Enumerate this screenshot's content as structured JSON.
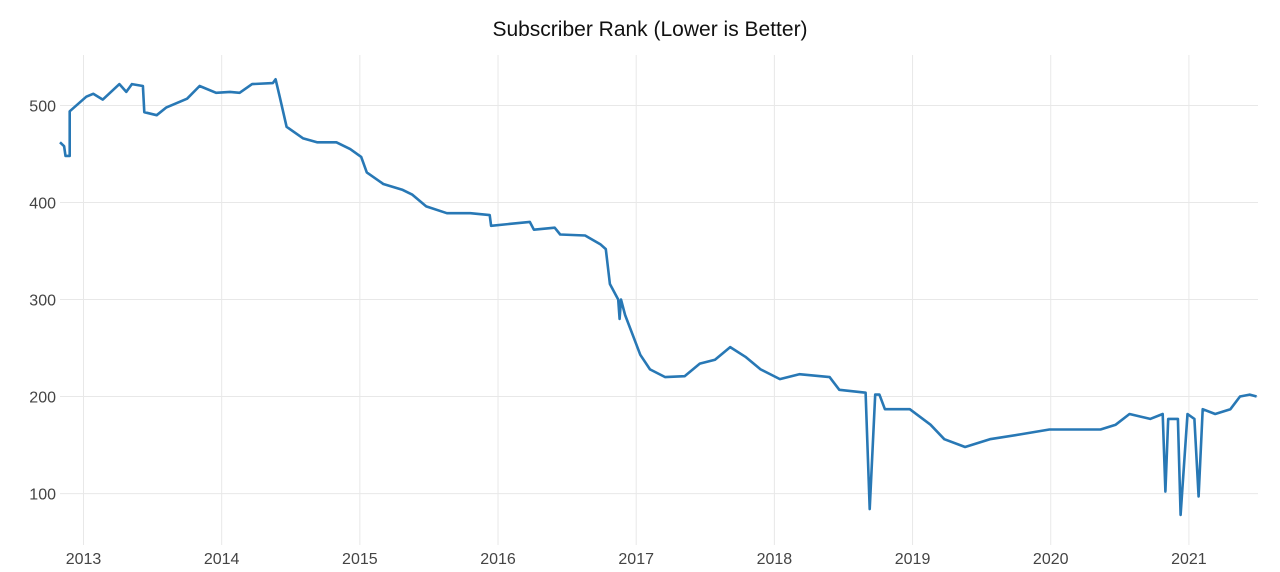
{
  "chart_data": {
    "type": "line",
    "title": "Subscriber Rank (Lower is Better)",
    "xlabel": "",
    "ylabel": "",
    "xlim": [
      2012.83,
      2021.5
    ],
    "ylim": [
      47,
      552
    ],
    "grid": true,
    "x_ticks": [
      2013,
      2014,
      2015,
      2016,
      2017,
      2018,
      2019,
      2020,
      2021
    ],
    "x_tick_labels": [
      "2013",
      "2014",
      "2015",
      "2016",
      "2017",
      "2018",
      "2019",
      "2020",
      "2021"
    ],
    "y_ticks": [
      100,
      200,
      300,
      400,
      500
    ],
    "y_tick_labels": [
      "100",
      "200",
      "300",
      "400",
      "500"
    ],
    "series": [
      {
        "name": "Subscriber Rank",
        "color": "#2878b5",
        "x": [
          2012.83,
          2012.86,
          2012.87,
          2012.9,
          2012.9,
          2013.02,
          2013.07,
          2013.14,
          2013.26,
          2013.31,
          2013.35,
          2013.43,
          2013.44,
          2013.53,
          2013.6,
          2013.75,
          2013.84,
          2013.96,
          2014.06,
          2014.13,
          2014.22,
          2014.37,
          2014.39,
          2014.42,
          2014.47,
          2014.59,
          2014.69,
          2014.83,
          2014.93,
          2015.01,
          2015.05,
          2015.17,
          2015.31,
          2015.38,
          2015.48,
          2015.63,
          2015.8,
          2015.94,
          2015.95,
          2016.23,
          2016.26,
          2016.41,
          2016.45,
          2016.63,
          2016.74,
          2016.78,
          2016.81,
          2016.87,
          2016.88,
          2016.89,
          2016.92,
          2017.03,
          2017.1,
          2017.21,
          2017.35,
          2017.46,
          2017.57,
          2017.68,
          2017.79,
          2017.9,
          2018.04,
          2018.18,
          2018.4,
          2018.47,
          2018.66,
          2018.69,
          2018.73,
          2018.76,
          2018.8,
          2018.98,
          2019.13,
          2019.23,
          2019.38,
          2019.56,
          2019.78,
          2019.99,
          2020.36,
          2020.47,
          2020.57,
          2020.72,
          2020.81,
          2020.83,
          2020.85,
          2020.92,
          2020.94,
          2020.99,
          2021.04,
          2021.07,
          2021.1,
          2021.19,
          2021.3,
          2021.37,
          2021.44,
          2021.49
        ],
        "y": [
          462,
          458,
          448,
          448,
          494,
          509,
          512,
          506,
          522,
          514,
          522,
          520,
          493,
          490,
          498,
          507,
          520,
          513,
          514,
          513,
          522,
          523,
          527,
          509,
          478,
          466,
          462,
          462,
          455,
          447,
          431,
          419,
          413,
          408,
          396,
          389,
          389,
          387,
          376,
          380,
          372,
          374,
          367,
          366,
          357,
          352,
          316,
          300,
          280,
          300,
          284,
          243,
          228,
          220,
          221,
          234,
          238,
          251,
          241,
          228,
          218,
          223,
          220,
          207,
          204,
          84,
          202,
          202,
          187,
          187,
          171,
          156,
          148,
          156,
          161,
          166,
          166,
          171,
          182,
          177,
          182,
          102,
          177,
          177,
          78,
          182,
          177,
          97,
          187,
          182,
          187,
          200,
          202,
          200
        ]
      }
    ]
  }
}
